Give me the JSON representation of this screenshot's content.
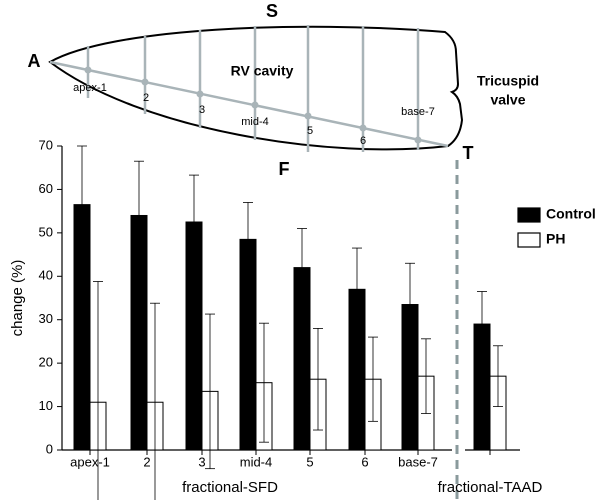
{
  "chart_data": {
    "type": "bar",
    "ylabel": "change (%)",
    "categories": [
      "apex-1",
      "2",
      "3",
      "mid-4",
      "5",
      "6",
      "base-7",
      "fractional-TAAD"
    ],
    "group_label": "fractional-SFD",
    "series": [
      {
        "name": "Control",
        "color": "#000000",
        "values": [
          56.5,
          54,
          52.5,
          48.5,
          42,
          37,
          33.5,
          29
        ],
        "errors": [
          13.5,
          12.5,
          10.8,
          8.5,
          9,
          9.5,
          9.5,
          7.5
        ]
      },
      {
        "name": "PH",
        "color": "#ffffff",
        "values": [
          11,
          11,
          13.5,
          15.5,
          16.3,
          16.3,
          17,
          17
        ],
        "errors": [
          27.8,
          22.8,
          17.8,
          13.7,
          11.7,
          9.7,
          8.6,
          7
        ]
      }
    ],
    "ylim": [
      0,
      70
    ],
    "yticks": [
      0,
      10,
      20,
      30,
      40,
      50,
      60,
      70
    ]
  },
  "diagram": {
    "top": "S",
    "left": "A",
    "bottom": "F",
    "right": "T",
    "cavity": "RV cavity",
    "valve": [
      "Tricuspid",
      "valve"
    ]
  }
}
